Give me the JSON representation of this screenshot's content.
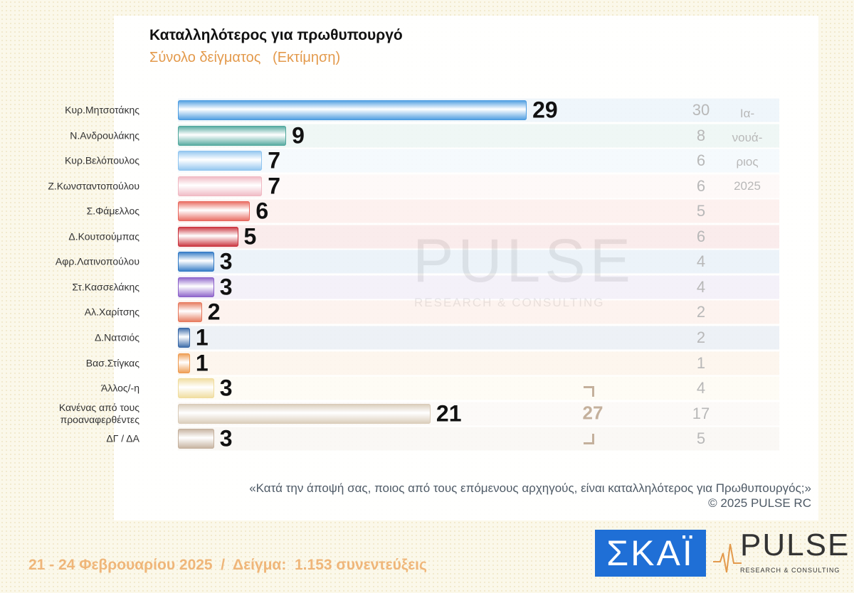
{
  "chart_data": {
    "type": "bar",
    "orientation": "horizontal",
    "title": "Καταλληλότερος για πρωθυπουργό",
    "subtitle": "Σύνολο δείγματος   (Εκτίμηση)",
    "categories": [
      "Κυρ.Μητσοτάκης",
      "Ν.Ανδρουλάκης",
      "Κυρ.Βελόπουλος",
      "Ζ.Κωνσταντοπούλου",
      "Σ.Φάμελλος",
      "Δ.Κουτσούμπας",
      "Αφρ.Λατινοπούλου",
      "Στ.Κασσελάκης",
      "Αλ.Χαρίτσης",
      "Δ.Νατσιός",
      "Βασ.Στίγκας",
      "Άλλος/-η",
      "Κανένας από τους\nπροαναφερθέντες",
      "ΔΓ / ΔΑ"
    ],
    "values": [
      29,
      9,
      7,
      7,
      6,
      5,
      3,
      3,
      2,
      1,
      1,
      3,
      21,
      3
    ],
    "colors": [
      "#4a9be0",
      "#4fa79c",
      "#8fc4ef",
      "#f0b8c2",
      "#e8675c",
      "#c9303a",
      "#2f78c4",
      "#8a5fc9",
      "#e6775a",
      "#3566a6",
      "#ee9a4e",
      "#f0dc9c",
      "#d9cbb8",
      "#c4b09c"
    ],
    "comparison": {
      "label": [
        "Ια-",
        "νουά-",
        "ριος",
        "2025"
      ],
      "values": [
        30,
        8,
        6,
        6,
        5,
        6,
        4,
        4,
        2,
        2,
        1,
        4,
        17,
        5
      ]
    },
    "bracket_total": 27,
    "question": "«Κατά την άποψή σας, ποιος από τους επόμενους αρχηγούς, είναι καταλληλότερος για Πρωθυπουργός;»",
    "copyright": "©  2025  PULSE RC",
    "footer": "21 - 24 Φεβρουαρίου 2025  /  Δείγμα:  1.153 συνεντεύξεις"
  },
  "branding": {
    "skai": "ΣΚΑΪ",
    "pulse": "PULSE",
    "pulse_sub": "RESEARCH & CONSULTING"
  }
}
